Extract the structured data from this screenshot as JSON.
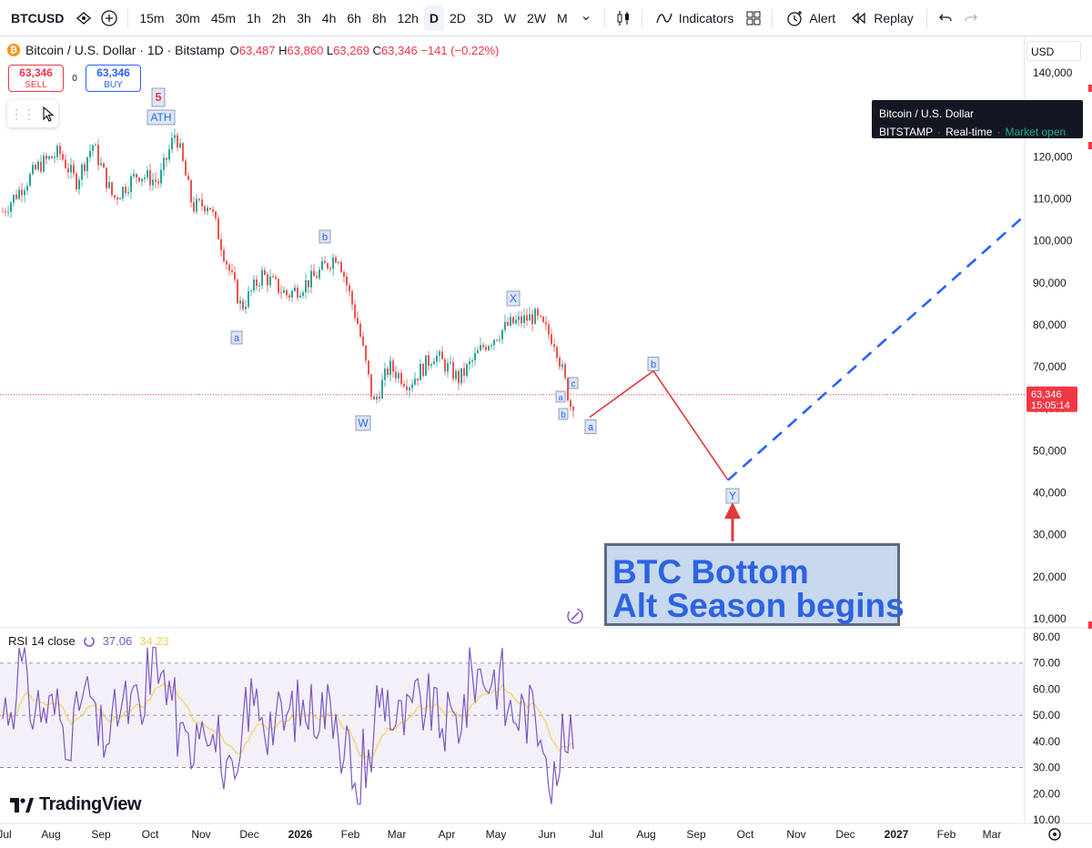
{
  "toolbar": {
    "symbol": "BTCUSD",
    "intervals": [
      "15m",
      "30m",
      "45m",
      "1h",
      "2h",
      "3h",
      "4h",
      "6h",
      "8h",
      "12h",
      "D",
      "2D",
      "3D",
      "W",
      "2W",
      "M"
    ],
    "active_interval": "D",
    "indicators_label": "Indicators",
    "alert_label": "Alert",
    "replay_label": "Replay"
  },
  "legend": {
    "title": "Bitcoin / U.S. Dollar · 1D · Bitstamp",
    "open_label": "O",
    "open": "63,487",
    "high_label": "H",
    "high": "63,860",
    "low_label": "L",
    "low": "63,269",
    "close_label": "C",
    "close": "63,346",
    "change": "−141 (−0.22%)"
  },
  "trade": {
    "sell_value": "63,346",
    "sell_label": "SELL",
    "spread": "0",
    "buy_value": "63,346",
    "buy_label": "BUY"
  },
  "symbol_tooltip": {
    "name": "Bitcoin / U.S. Dollar",
    "exchange": "BITSTAMP",
    "feed": "Real-time",
    "status": "Market open"
  },
  "price_scale": {
    "currency": "USD",
    "labels": [
      "140,000",
      "130,000",
      "120,000",
      "110,000",
      "100,000",
      "90,000",
      "80,000",
      "70,000",
      "60,000",
      "50,000",
      "40,000",
      "30,000",
      "20,000",
      "10,000"
    ],
    "last_price": "63,346",
    "countdown": "15:05:14"
  },
  "rsi": {
    "title": "RSI 14 close",
    "value": "37.06",
    "ma_value": "34.23",
    "scale_labels": [
      "80.00",
      "70.00",
      "60.00",
      "50.00",
      "40.00",
      "30.00",
      "20.00",
      "10.00"
    ]
  },
  "time_axis": {
    "labels": [
      "Jul",
      "Aug",
      "Sep",
      "Oct",
      "Nov",
      "Dec",
      "2026",
      "Feb",
      "Mar",
      "Apr",
      "May",
      "Jun",
      "Jul",
      "Aug",
      "Sep",
      "Oct",
      "Nov",
      "Dec",
      "2027",
      "Feb",
      "Mar"
    ],
    "bold": [
      "2026",
      "2027"
    ]
  },
  "annotations": {
    "wave5": "5",
    "ath": "ATH",
    "a1": "a",
    "b1": "b",
    "W": "W",
    "X": "X",
    "small_a": "a",
    "small_b": "b",
    "small_c": "c",
    "proj_a": "a",
    "proj_b": "b",
    "Y": "Y",
    "callout_line1": "BTC Bottom",
    "callout_line2": "Alt Season begins"
  },
  "watermark": "TradingView",
  "colors": {
    "up": "#26a69a",
    "down": "#ef5350",
    "projection": "#e03a3a",
    "dashed_projection": "#2962ff",
    "rsi_line": "#7e57c2",
    "rsi_ma": "#f3d15a",
    "label_blue": "#2962ff",
    "label_red": "#f23645"
  },
  "chart_data": [
    {
      "type": "candlestick",
      "title": "Bitcoin / U.S. Dollar · 1D · Bitstamp",
      "ylabel": "USD",
      "ylim": [
        10000,
        140000
      ],
      "y_ticks": [
        140000,
        130000,
        120000,
        110000,
        100000,
        90000,
        80000,
        70000,
        60000,
        50000,
        40000,
        30000,
        20000,
        10000
      ],
      "x_ticks": [
        "Jul",
        "Aug",
        "Sep",
        "Oct",
        "Nov",
        "Dec",
        "2026",
        "Feb",
        "Mar",
        "Apr",
        "May",
        "Jun",
        "Jul",
        "Aug",
        "Sep",
        "Oct",
        "Nov",
        "Dec",
        "2027",
        "Feb",
        "Mar"
      ],
      "price_path": [
        {
          "x": "Jul",
          "y": 107000
        },
        {
          "x": "Jul",
          "y": 118000
        },
        {
          "x": "Aug",
          "y": 121000
        },
        {
          "x": "Aug",
          "y": 114000
        },
        {
          "x": "Aug",
          "y": 123000
        },
        {
          "x": "Sep",
          "y": 110000
        },
        {
          "x": "Sep",
          "y": 116000
        },
        {
          "x": "Oct",
          "y": 114000
        },
        {
          "x": "Oct",
          "y": 126000
        },
        {
          "x": "Oct",
          "y": 108000
        },
        {
          "x": "Nov",
          "y": 109000
        },
        {
          "x": "Nov",
          "y": 96000
        },
        {
          "x": "Nov",
          "y": 84000
        },
        {
          "x": "Dec",
          "y": 92000
        },
        {
          "x": "Dec",
          "y": 87000
        },
        {
          "x": "2026",
          "y": 91000
        },
        {
          "x": "2026",
          "y": 97000
        },
        {
          "x": "Feb",
          "y": 80000
        },
        {
          "x": "Feb",
          "y": 61000
        },
        {
          "x": "Feb",
          "y": 70000
        },
        {
          "x": "Mar",
          "y": 66000
        },
        {
          "x": "Mar",
          "y": 73000
        },
        {
          "x": "Apr",
          "y": 67000
        },
        {
          "x": "Apr",
          "y": 75000
        },
        {
          "x": "May",
          "y": 80000
        },
        {
          "x": "May",
          "y": 82000
        },
        {
          "x": "Jun",
          "y": 76000
        },
        {
          "x": "Jun",
          "y": 60000
        },
        {
          "x": "Jun",
          "y": 63346
        }
      ],
      "last_price": 63346,
      "wave_labels": [
        {
          "label": "5",
          "x": "Oct",
          "y": 126000
        },
        {
          "label": "ATH",
          "x": "Oct",
          "y": 126000
        },
        {
          "label": "a",
          "x": "Nov",
          "y": 81000
        },
        {
          "label": "b",
          "x": "2026",
          "y": 97000
        },
        {
          "label": "W",
          "x": "Feb",
          "y": 60000
        },
        {
          "label": "X",
          "x": "May",
          "y": 83000
        },
        {
          "label": "b",
          "x": "Jun",
          "y": 58000
        },
        {
          "label": "c",
          "x": "Jun",
          "y": 65000
        }
      ],
      "projection": [
        {
          "label": "a",
          "x": "Jul",
          "y": 58000
        },
        {
          "label": "b",
          "x": "Aug",
          "y": 69000
        },
        {
          "label": "Y",
          "x": "Sep",
          "y": 43000
        }
      ],
      "dashed_projection": {
        "from": {
          "x": "Sep",
          "y": 43000
        },
        "to": {
          "x": "Mar",
          "y": 106000
        }
      }
    },
    {
      "type": "line",
      "title": "RSI 14 close",
      "ylim": [
        10,
        80
      ],
      "y_ticks": [
        80,
        70,
        60,
        50,
        40,
        30,
        20,
        10
      ],
      "band": [
        30,
        70
      ],
      "midline": 50,
      "series": [
        {
          "name": "RSI 14 close",
          "last": 37.06
        },
        {
          "name": "RSI MA",
          "last": 34.23
        }
      ]
    }
  ]
}
